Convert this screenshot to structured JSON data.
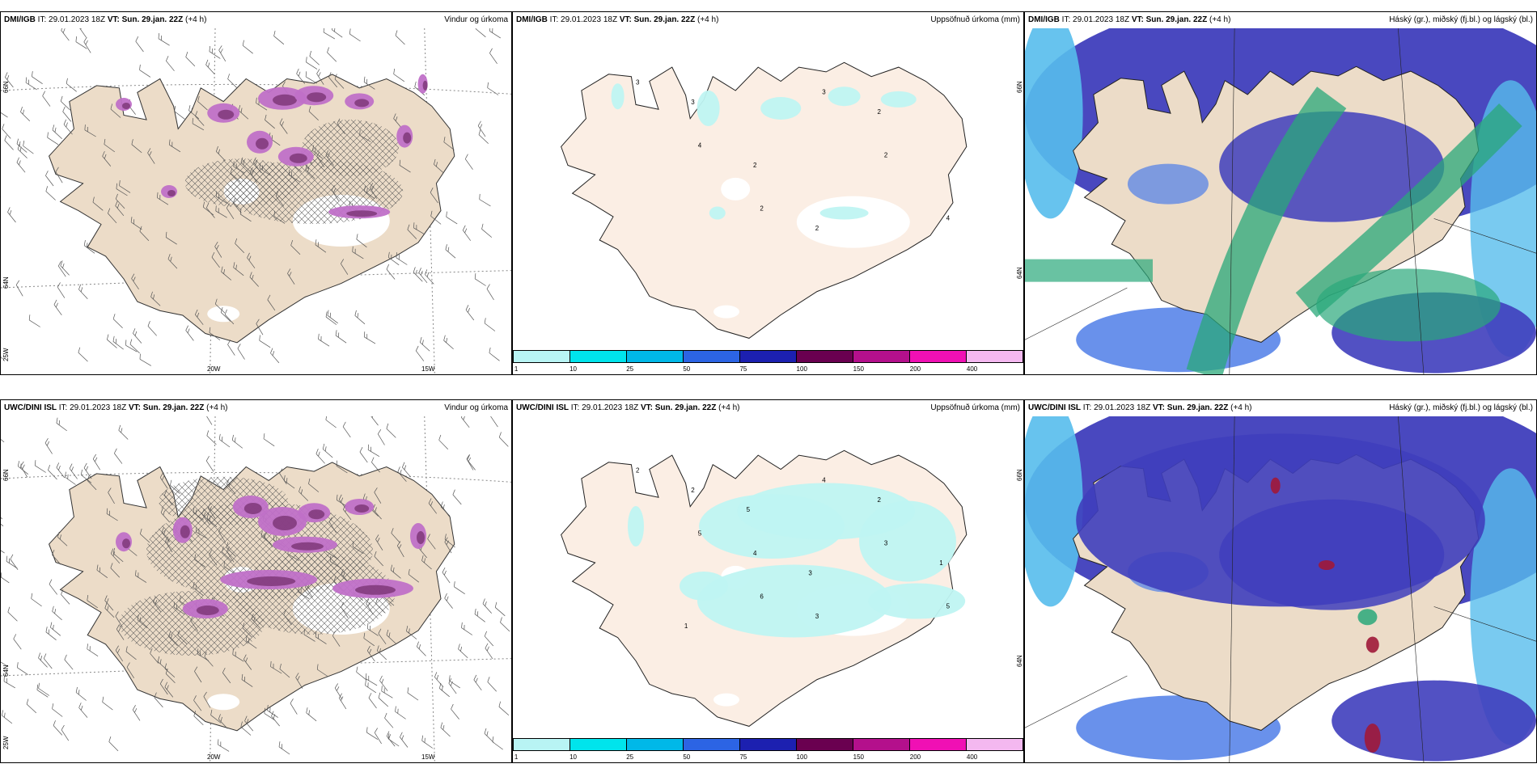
{
  "rows": [
    {
      "panels": [
        {
          "model": "DMI/IGB",
          "it": "IT: 29.01.2023 18Z",
          "vt_label": "VT: Sun. 29.jan. 22Z",
          "lead": "(+4 h)",
          "title": "Vindur og úrkoma",
          "kind": "wind"
        },
        {
          "model": "DMI/IGB",
          "it": "IT: 29.01.2023 18Z",
          "vt_label": "VT: Sun. 29.jan. 22Z",
          "lead": "(+4 h)",
          "title": "Uppsöfnuð úrkoma (mm)",
          "kind": "accum"
        },
        {
          "model": "DMI/IGB",
          "it": "IT: 29.01.2023 18Z",
          "vt_label": "VT: Sun. 29.jan. 22Z",
          "lead": "(+4 h)",
          "title": "Háský (gr.), miðský (fj.bl.) og lágský (bl.)",
          "kind": "cloud"
        }
      ]
    },
    {
      "panels": [
        {
          "model": "UWC/DINI ISL",
          "it": "IT: 29.01.2023 18Z",
          "vt_label": "VT: Sun. 29.jan. 22Z",
          "lead": "(+4 h)",
          "title": "Vindur og úrkoma",
          "kind": "wind"
        },
        {
          "model": "UWC/DINI ISL",
          "it": "IT: 29.01.2023 18Z",
          "vt_label": "VT: Sun. 29.jan. 22Z",
          "lead": "(+4 h)",
          "title": "Uppsöfnuð úrkoma (mm)",
          "kind": "accum"
        },
        {
          "model": "UWC/DINI ISL",
          "it": "IT: 29.01.2023 18Z",
          "vt_label": "VT: Sun. 29.jan. 22Z",
          "lead": "(+4 h)",
          "title": "Háský (gr.), miðský (fj.bl.) og lágský (bl.)",
          "kind": "cloud"
        }
      ]
    }
  ],
  "axis_labels": {
    "lat66": "66N",
    "lat64": "64N",
    "lon25": "25W",
    "lon20": "20W",
    "lon15": "15W"
  },
  "legend": {
    "ticks": [
      "1",
      "10",
      "25",
      "50",
      "75",
      "100",
      "150",
      "200",
      "400"
    ],
    "colors": [
      "#b8f4f4",
      "#00e4ec",
      "#00b8e8",
      "#2c64e4",
      "#1c20b0",
      "#6a0050",
      "#b4108c",
      "#f010b4",
      "#f4b8f0"
    ]
  },
  "point_labels_top_accum": [
    "3",
    "4",
    "2",
    "3",
    "2",
    "4",
    "3",
    "2",
    "2",
    "2"
  ],
  "point_labels_bottom_accum": [
    "2",
    "5",
    "6",
    "4",
    "3",
    "5",
    "2",
    "4",
    "3",
    "2",
    "1",
    "1",
    "5",
    "3"
  ],
  "colors": {
    "land": "#ecdcc8",
    "land_light": "#fbeee4",
    "precip": "#c070c8",
    "precip_dark": "#7a3474",
    "cloud_dark": "#3f3ebc",
    "cloud_blue": "#4f7ee8",
    "cloud_light": "#57bdec",
    "cloud_green": "#2aa87a"
  }
}
